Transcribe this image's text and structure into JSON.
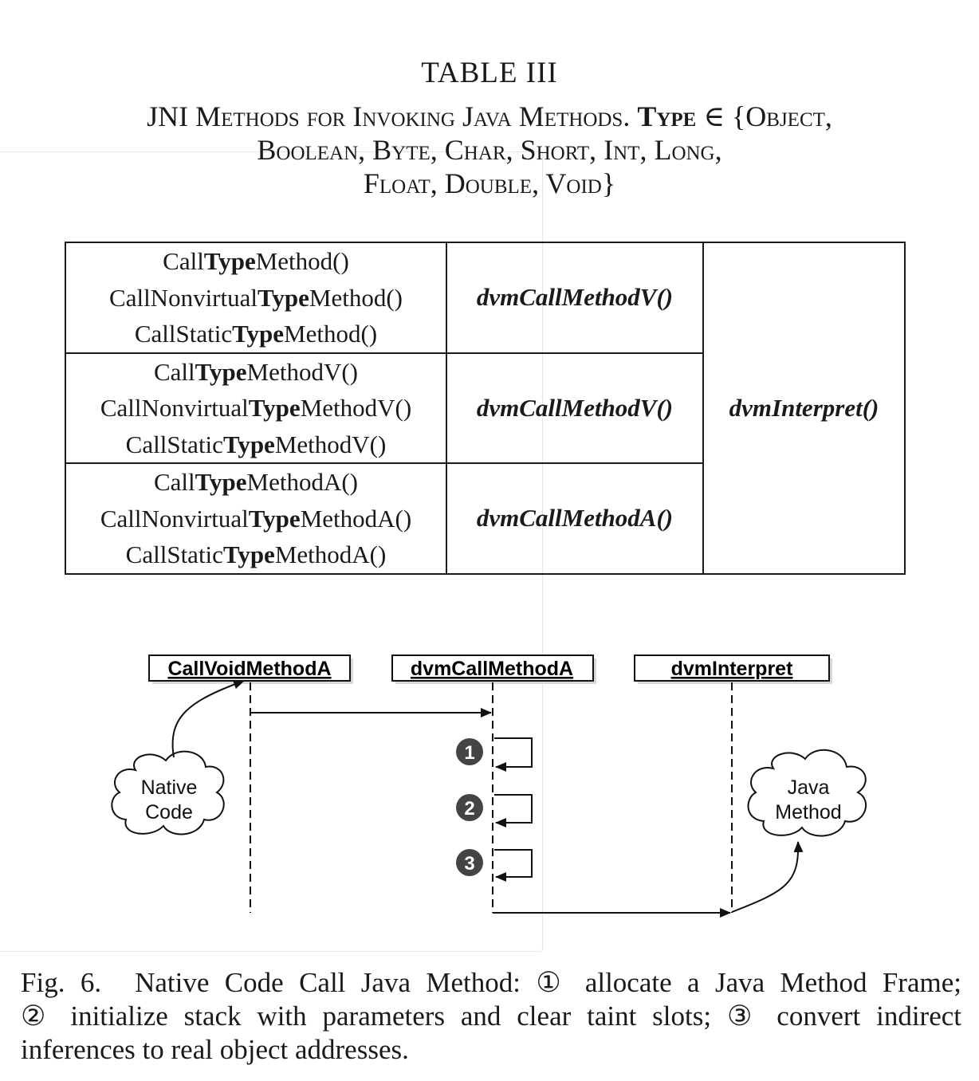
{
  "table": {
    "title": "TABLE III",
    "caption": {
      "part1": "JNI Methods for Invoking Java Methods.",
      "type_word": "Type",
      "part2": "∈ {Object,",
      "line2": "Boolean, Byte, Char, Short, Int, Long,",
      "line3": "Float, Double, Void}"
    },
    "rows": [
      {
        "methods": [
          {
            "pre": "Call",
            "type": "Type",
            "post": "Method()"
          },
          {
            "pre": "CallNonvirtual",
            "type": "Type",
            "post": "Method()"
          },
          {
            "pre": "CallStatic",
            "type": "Type",
            "post": "Method()"
          }
        ],
        "dvm": "dvmCallMethodV()"
      },
      {
        "methods": [
          {
            "pre": "Call",
            "type": "Type",
            "post": "MethodV()"
          },
          {
            "pre": "CallNonvirtual",
            "type": "Type",
            "post": "MethodV()"
          },
          {
            "pre": "CallStatic",
            "type": "Type",
            "post": "MethodV()"
          }
        ],
        "dvm": "dvmCallMethodV()"
      },
      {
        "methods": [
          {
            "pre": "Call",
            "type": "Type",
            "post": "MethodA()"
          },
          {
            "pre": "CallNonvirtual",
            "type": "Type",
            "post": "MethodA()"
          },
          {
            "pre": "CallStatic",
            "type": "Type",
            "post": "MethodA()"
          }
        ],
        "dvm": "dvmCallMethodA()"
      }
    ],
    "interpreter": "dvmInterpret()"
  },
  "diagram": {
    "lifelines": [
      "CallVoidMethodA",
      "dvmCallMethodA",
      "dvmInterpret"
    ],
    "native_cloud": [
      "Native",
      "Code"
    ],
    "java_cloud": [
      "Java",
      "Method"
    ],
    "steps": [
      "1",
      "2",
      "3"
    ]
  },
  "figure_caption": {
    "label": "Fig. 6.",
    "line1": "Native Code Call Java Method: ① allocate a Java Method Frame;",
    "line2": "② initialize stack with parameters and clear taint slots; ③ convert indirect",
    "line3": "inferences to real object addresses."
  }
}
